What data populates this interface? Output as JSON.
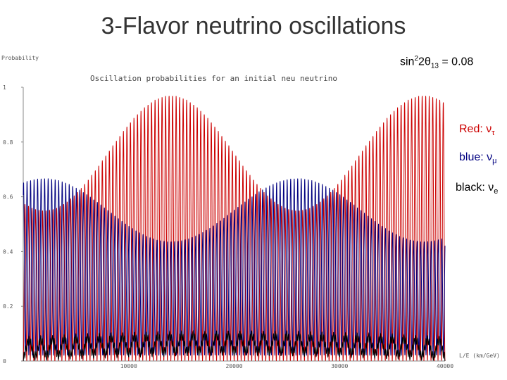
{
  "slide": {
    "title": "3-Flavor neutrino oscillations",
    "param_prefix": "sin",
    "param_sup": "2",
    "param_mid": "2θ",
    "param_sub": "13",
    "param_value": " = 0.08"
  },
  "legend": {
    "red": {
      "label": "Red: ",
      "symbol": "ν",
      "sub": "τ",
      "color": "#cc0000"
    },
    "blue": {
      "label": "blue: ",
      "symbol": "ν",
      "sub": "μ",
      "color": "#000080"
    },
    "black": {
      "label": "black: ",
      "symbol": "ν",
      "sub": "e",
      "color": "#000000"
    }
  },
  "chart_data": {
    "type": "line",
    "title": "Oscillation probabilities for an initial neu neutrino",
    "ylabel": "Probability",
    "xlabel": "L/E (km/GeV)",
    "x_ticks": [
      "10000",
      "20000",
      "30000",
      "40000"
    ],
    "y_ticks": [
      "1",
      "0.8",
      "0.6",
      "0.4",
      "0.2",
      "0"
    ],
    "xlim": [
      0,
      40000
    ],
    "ylim": [
      0,
      1
    ],
    "series": [
      {
        "name": "ν_τ",
        "color": "#cc0000"
      },
      {
        "name": "ν_μ",
        "color": "#000080"
      },
      {
        "name": "ν_e",
        "color": "#000000"
      }
    ]
  }
}
